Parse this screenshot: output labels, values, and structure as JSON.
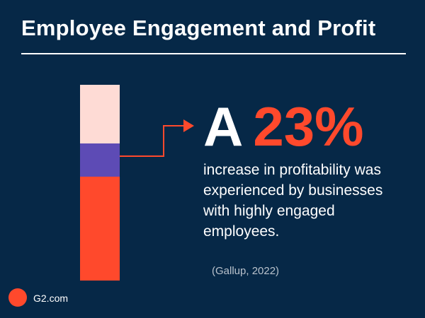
{
  "title": "Employee Engagement and Profit",
  "headline": {
    "prefix": "A",
    "value": "23%"
  },
  "description": "increase in profitability was experienced by businesses with highly engaged employees.",
  "source": "(Gallup, 2022)",
  "brand": {
    "logo_text": "G²",
    "site": "G2.com"
  },
  "colors": {
    "background": "#062847",
    "accent": "#ff492c",
    "purple": "#5d4bb5",
    "light": "#fedbd5",
    "text": "#ffffff"
  },
  "chart_data": {
    "type": "bar",
    "stacked": true,
    "title": "",
    "xlabel": "",
    "ylabel": "",
    "segments": [
      {
        "color": "#ff492c",
        "fraction": 0.53
      },
      {
        "color": "#5d4bb5",
        "fraction": 0.17
      },
      {
        "color": "#fedbd5",
        "fraction": 0.3
      }
    ]
  }
}
